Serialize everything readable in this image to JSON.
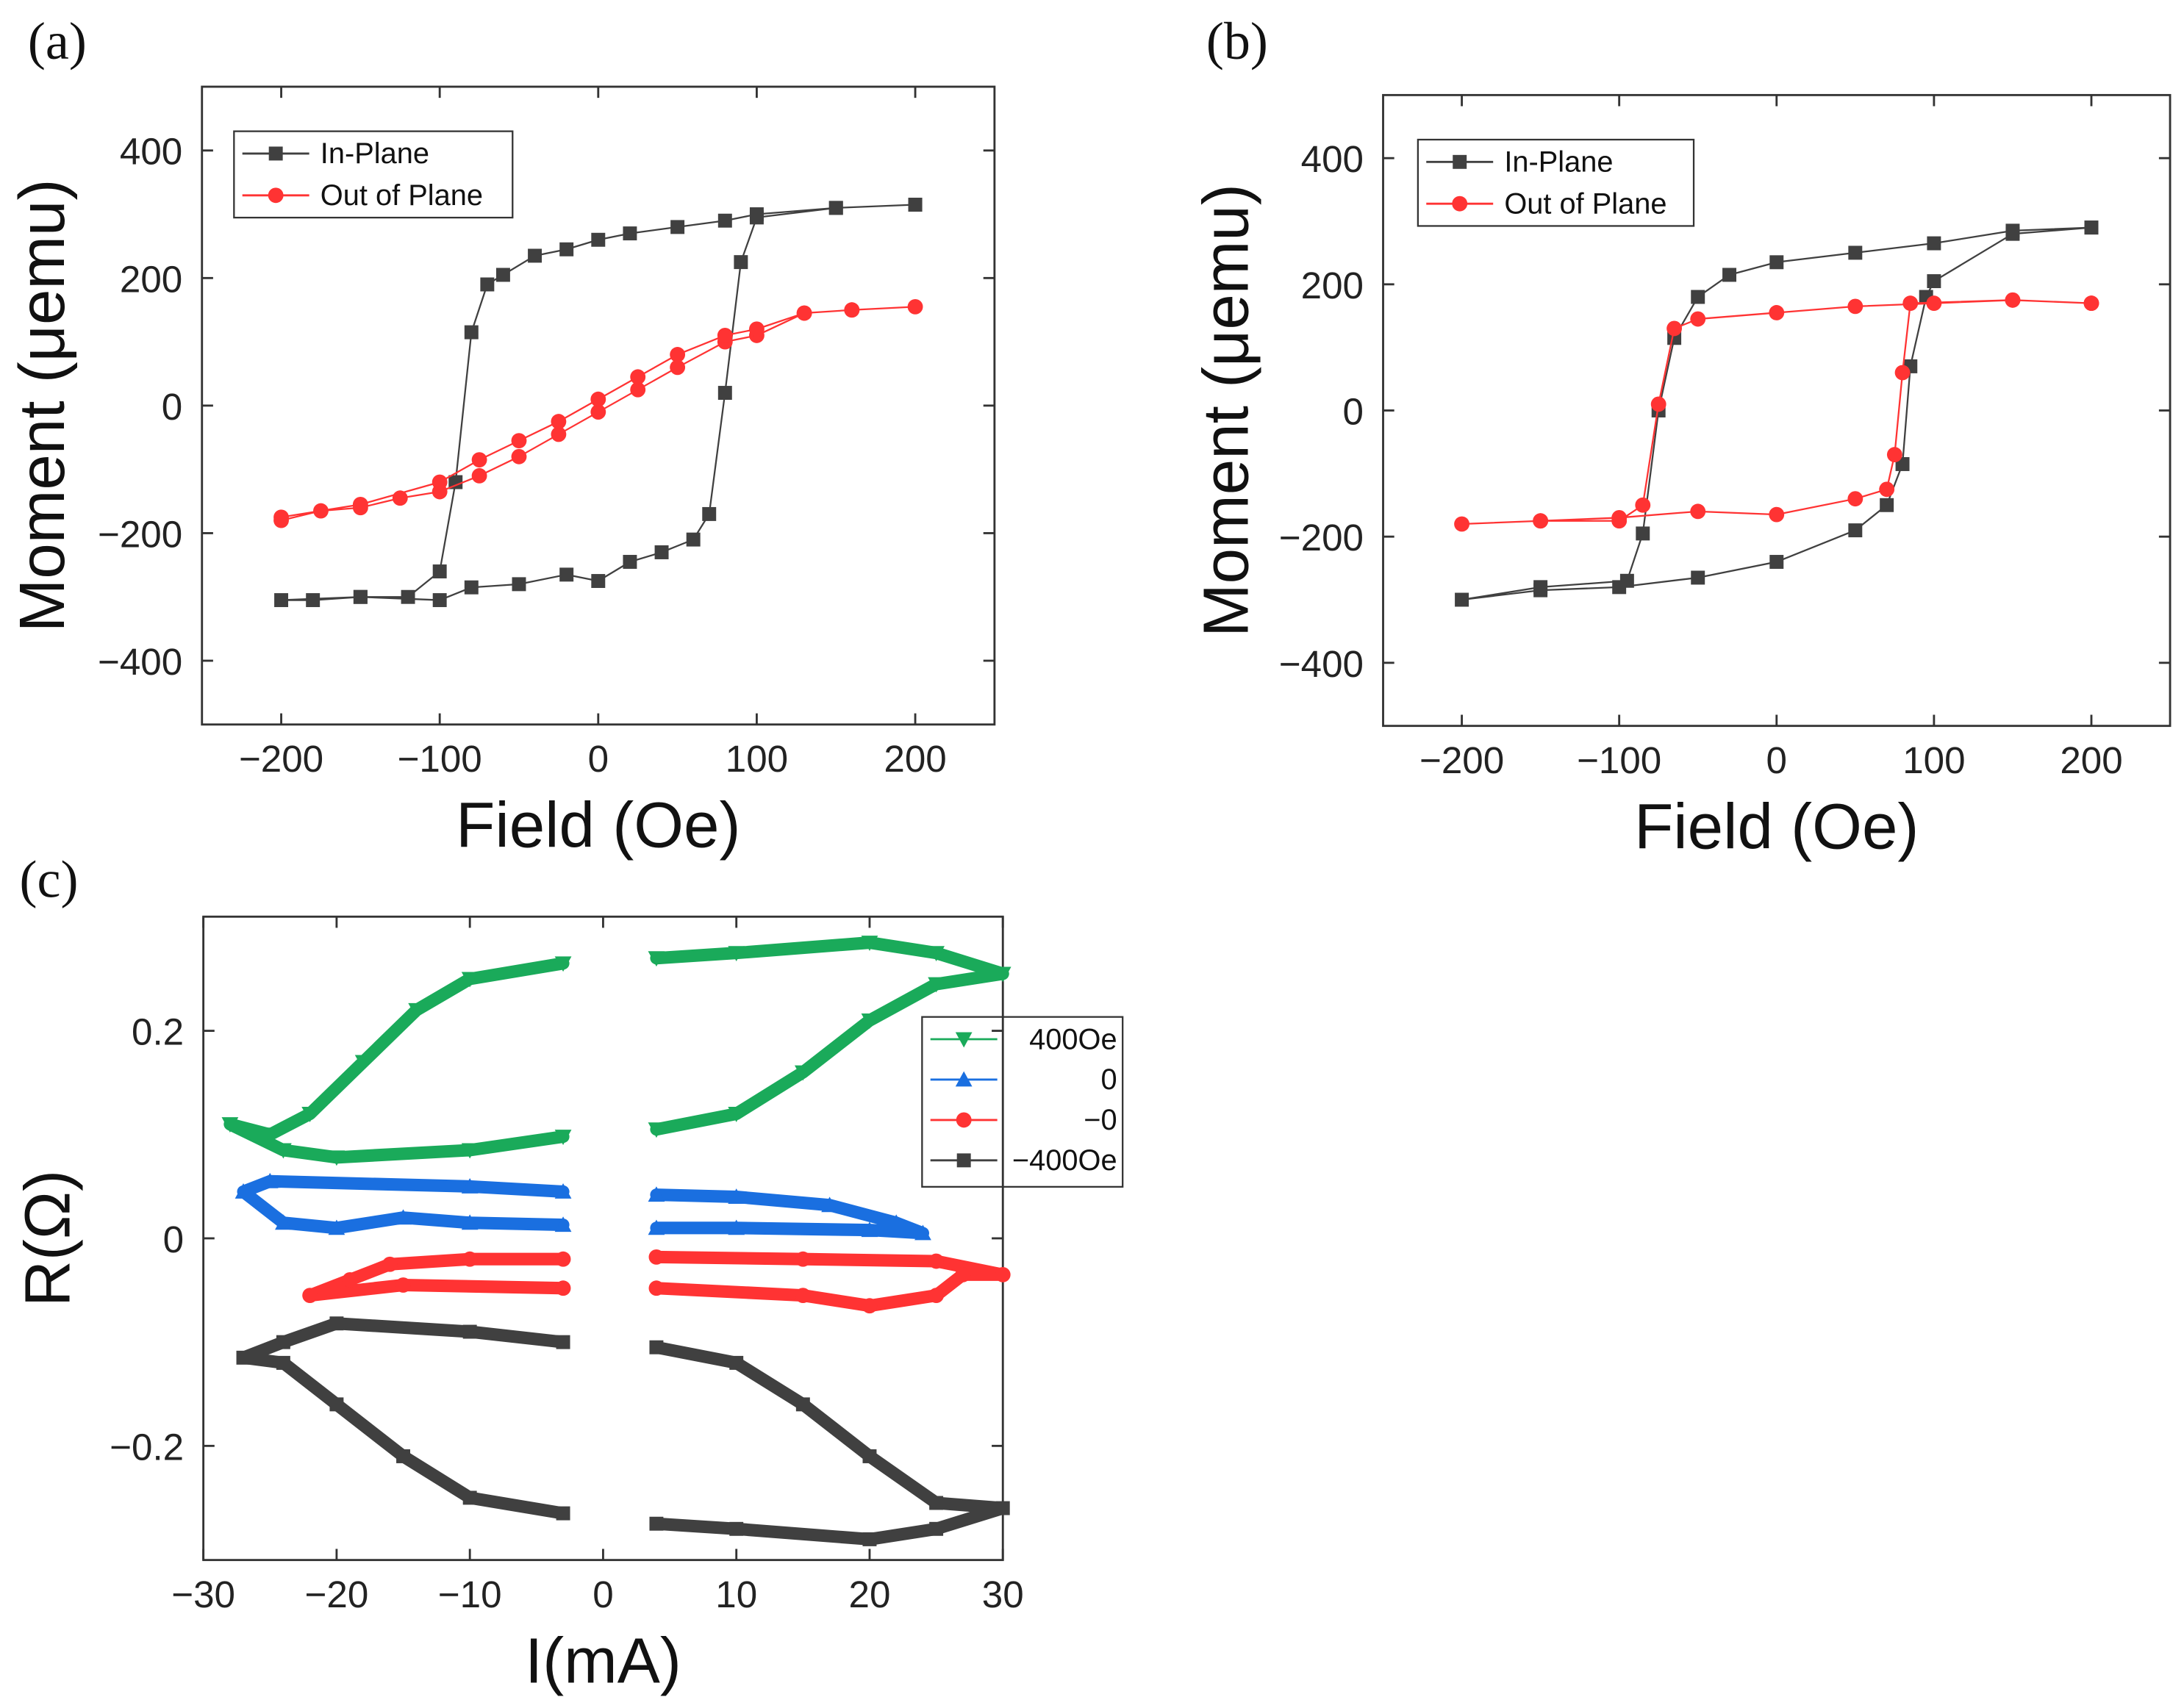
{
  "chart_data": [
    {
      "panel": "(a)",
      "type": "line",
      "xlabel": "Field (Oe)",
      "ylabel": "Moment (μemu)",
      "xlim": [
        -250,
        250
      ],
      "ylim": [
        -500,
        500
      ],
      "xticks": [
        -200,
        -100,
        0,
        100,
        200
      ],
      "yticks": [
        -400,
        -200,
        0,
        200,
        400
      ],
      "legend_position": "top-left",
      "series": [
        {
          "name": "In-Plane",
          "color": "#404040",
          "marker": "square",
          "x": [
            200,
            150,
            100,
            80,
            50,
            20,
            0,
            -20,
            -40,
            -60,
            -70,
            -80,
            -90,
            -100,
            -120,
            -150,
            -200,
            -180,
            -150,
            -100,
            -80,
            -50,
            -20,
            0,
            20,
            40,
            60,
            70,
            80,
            90,
            100,
            150,
            200
          ],
          "y": [
            315,
            310,
            300,
            290,
            280,
            270,
            260,
            245,
            235,
            205,
            190,
            115,
            -120,
            -260,
            -300,
            -300,
            -305,
            -305,
            -300,
            -305,
            -285,
            -280,
            -265,
            -275,
            -245,
            -230,
            -210,
            -170,
            20,
            225,
            295,
            310,
            315
          ]
        },
        {
          "name": "Out of Plane",
          "color": "#ff3333",
          "marker": "circle",
          "x": [
            -200,
            -175,
            -150,
            -125,
            -100,
            -75,
            -50,
            -25,
            0,
            25,
            50,
            80,
            100,
            130,
            160,
            200,
            160,
            130,
            100,
            80,
            50,
            25,
            0,
            -25,
            -50,
            -75,
            -100,
            -150,
            -200
          ],
          "y": [
            -180,
            -165,
            -160,
            -145,
            -135,
            -110,
            -80,
            -45,
            -10,
            25,
            60,
            100,
            110,
            145,
            150,
            155,
            150,
            145,
            120,
            110,
            80,
            45,
            10,
            -25,
            -55,
            -85,
            -120,
            -155,
            -175
          ]
        }
      ]
    },
    {
      "panel": "(b)",
      "type": "line",
      "xlabel": "Field (Oe)",
      "ylabel": "Moment (μemu)",
      "xlim": [
        -250,
        250
      ],
      "ylim": [
        -500,
        500
      ],
      "xticks": [
        -200,
        -100,
        0,
        100,
        200
      ],
      "yticks": [
        -400,
        -200,
        0,
        200,
        400
      ],
      "legend_position": "top-left",
      "series": [
        {
          "name": "In-Plane",
          "color": "#404040",
          "marker": "square",
          "x": [
            200,
            150,
            100,
            50,
            0,
            -30,
            -50,
            -65,
            -75,
            -85,
            -95,
            -150,
            -200,
            -150,
            -100,
            -50,
            0,
            50,
            70,
            80,
            85,
            95,
            100,
            150,
            200
          ],
          "y": [
            290,
            285,
            265,
            250,
            235,
            215,
            180,
            115,
            0,
            -195,
            -270,
            -280,
            -300,
            -285,
            -280,
            -265,
            -240,
            -190,
            -150,
            -85,
            70,
            180,
            205,
            280,
            290
          ]
        },
        {
          "name": "Out of Plane",
          "color": "#ff3333",
          "marker": "circle",
          "x": [
            200,
            150,
            100,
            50,
            0,
            -50,
            -65,
            -75,
            -85,
            -100,
            -150,
            -200,
            -150,
            -100,
            -50,
            0,
            50,
            70,
            75,
            80,
            85,
            150,
            200
          ],
          "y": [
            170,
            175,
            170,
            165,
            155,
            145,
            130,
            10,
            -150,
            -175,
            -175,
            -180,
            -175,
            -170,
            -160,
            -165,
            -140,
            -125,
            -70,
            60,
            170,
            175,
            170
          ]
        }
      ]
    },
    {
      "panel": "(c)",
      "type": "line",
      "xlabel": "I(mA)",
      "ylabel": "R(Ω)",
      "xlim": [
        -30,
        30
      ],
      "ylim": [
        -0.31,
        0.31
      ],
      "xticks": [
        -30,
        -20,
        -10,
        0,
        10,
        20,
        30
      ],
      "yticks": [
        -0.2,
        0,
        0.2
      ],
      "ytick_labels": [
        "−0.2",
        "0",
        "0.2"
      ],
      "xtick_labels": [
        "−30",
        "−20",
        "−10",
        "0",
        "10",
        "20",
        "30"
      ],
      "legend_position": "right",
      "series": [
        {
          "name": "400Oe",
          "color": "#1aaa5a",
          "marker": "triangle-down",
          "branches": [
            {
              "x": [
                -3,
                -10,
                -20,
                -24,
                -28,
                -25,
                -22,
                -18,
                -14,
                -10,
                -3
              ],
              "y": [
                0.098,
                0.085,
                0.078,
                0.085,
                0.11,
                0.1,
                0.12,
                0.17,
                0.22,
                0.25,
                0.265
              ]
            },
            {
              "x": [
                4,
                10,
                15,
                20,
                25,
                30,
                25,
                20,
                10,
                4
              ],
              "y": [
                0.105,
                0.12,
                0.16,
                0.21,
                0.245,
                0.255,
                0.275,
                0.285,
                0.275,
                0.27
              ]
            }
          ]
        },
        {
          "name": "0",
          "color": "#1a6fe0",
          "marker": "triangle-up",
          "branches": [
            {
              "x": [
                -3,
                -10,
                -25,
                -27,
                -24,
                -20,
                -15,
                -10,
                -3
              ],
              "y": [
                0.045,
                0.05,
                0.055,
                0.045,
                0.015,
                0.01,
                0.02,
                0.015,
                0.013
              ]
            },
            {
              "x": [
                4,
                10,
                17,
                22,
                24,
                20,
                10,
                4
              ],
              "y": [
                0.042,
                0.04,
                0.032,
                0.015,
                0.005,
                0.008,
                0.01,
                0.01
              ]
            }
          ]
        },
        {
          "name": "−0",
          "color": "#ff3333",
          "marker": "circle",
          "branches": [
            {
              "x": [
                -3,
                -10,
                -16,
                -19,
                -22,
                -15,
                -3
              ],
              "y": [
                -0.02,
                -0.02,
                -0.025,
                -0.04,
                -0.055,
                -0.045,
                -0.048
              ]
            },
            {
              "x": [
                4,
                15,
                25,
                30,
                27,
                25,
                20,
                15,
                4
              ],
              "y": [
                -0.018,
                -0.02,
                -0.022,
                -0.035,
                -0.035,
                -0.055,
                -0.065,
                -0.055,
                -0.048
              ]
            }
          ]
        },
        {
          "name": "−400Oe",
          "color": "#404040",
          "marker": "square",
          "branches": [
            {
              "x": [
                -3,
                -10,
                -20,
                -24,
                -27,
                -24,
                -20,
                -15,
                -10,
                -3
              ],
              "y": [
                -0.1,
                -0.09,
                -0.082,
                -0.1,
                -0.115,
                -0.12,
                -0.16,
                -0.21,
                -0.25,
                -0.265
              ]
            },
            {
              "x": [
                4,
                10,
                15,
                20,
                25,
                30,
                25,
                20,
                10,
                4
              ],
              "y": [
                -0.105,
                -0.12,
                -0.16,
                -0.21,
                -0.255,
                -0.26,
                -0.28,
                -0.29,
                -0.28,
                -0.275
              ]
            }
          ]
        }
      ]
    }
  ]
}
